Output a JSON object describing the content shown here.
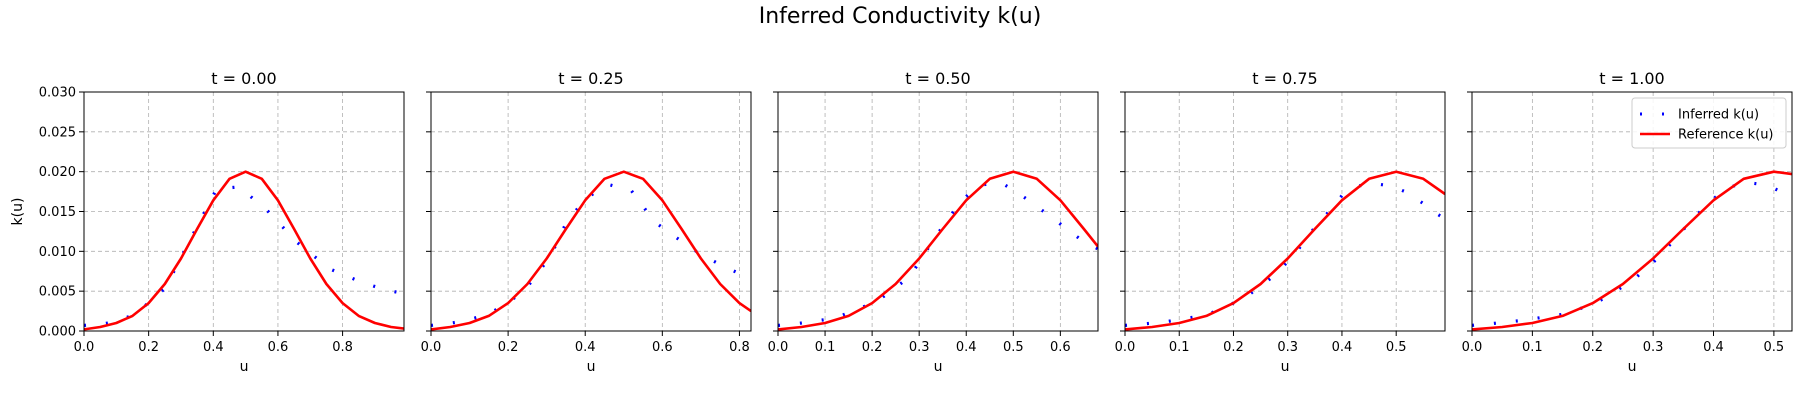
{
  "title": "Inferred Conductivity k(u)",
  "colors": {
    "inferred": "#0000ff",
    "reference": "#ff0000",
    "grid": "#b0b0b0"
  },
  "chart_data": [
    {
      "type": "line",
      "title": "t = 0.00",
      "xlabel": "u",
      "ylabel": "k(u)",
      "xlim": [
        0.0,
        0.99
      ],
      "ylim": [
        0.0,
        0.03
      ],
      "xticks": [
        "0.0",
        "0.2",
        "0.4",
        "0.6",
        "0.8"
      ],
      "yticks": [
        "0.000",
        "0.005",
        "0.010",
        "0.015",
        "0.020",
        "0.025",
        "0.030"
      ],
      "grid": true,
      "series": [
        {
          "name": "Inferred k(u)",
          "style": "dotted",
          "x": [
            0.0,
            0.03,
            0.06,
            0.09,
            0.12,
            0.15,
            0.18,
            0.21,
            0.25,
            0.41,
            0.48,
            0.57,
            0.66,
            0.76,
            0.86,
            0.93,
            0.99
          ],
          "y": [
            0.0007,
            0.0008,
            0.0009,
            0.0011,
            0.0015,
            0.002,
            0.0028,
            0.004,
            0.0053,
            0.0178,
            0.0181,
            0.015,
            0.0111,
            0.0078,
            0.0061,
            0.0052,
            0.0047
          ]
        },
        {
          "name": "Reference k(u)",
          "style": "solid",
          "x": [
            0.0,
            0.05,
            0.1,
            0.15,
            0.2,
            0.25,
            0.3,
            0.35,
            0.4,
            0.45,
            0.5,
            0.55,
            0.6,
            0.65,
            0.7,
            0.75,
            0.8,
            0.85,
            0.9,
            0.95,
            0.99
          ],
          "y": [
            0.0002,
            0.0005,
            0.001,
            0.0019,
            0.0035,
            0.0059,
            0.0091,
            0.0128,
            0.0164,
            0.0191,
            0.02,
            0.0191,
            0.0164,
            0.0128,
            0.0091,
            0.0059,
            0.0035,
            0.0019,
            0.001,
            0.0005,
            0.0003
          ]
        }
      ]
    },
    {
      "type": "line",
      "title": "t = 0.25",
      "xlabel": "u",
      "ylabel": "",
      "xlim": [
        0.0,
        0.83
      ],
      "ylim": [
        0.0,
        0.03
      ],
      "xticks": [
        "0.0",
        "0.2",
        "0.4",
        "0.6",
        "0.8"
      ],
      "yticks": [],
      "grid": true,
      "series": [
        {
          "name": "Inferred k(u)",
          "style": "dotted",
          "x": [
            0.0,
            0.04,
            0.08,
            0.15,
            0.24,
            0.31,
            0.35,
            0.4,
            0.46,
            0.52,
            0.58,
            0.64,
            0.7,
            0.76,
            0.8,
            0.83
          ],
          "y": [
            0.0007,
            0.0009,
            0.0012,
            0.0021,
            0.0049,
            0.0094,
            0.0135,
            0.0166,
            0.0184,
            0.0176,
            0.0137,
            0.0116,
            0.0096,
            0.0081,
            0.0072,
            0.0067
          ]
        },
        {
          "name": "Reference k(u)",
          "style": "solid",
          "x": [
            0.0,
            0.05,
            0.1,
            0.15,
            0.2,
            0.25,
            0.3,
            0.35,
            0.4,
            0.45,
            0.5,
            0.55,
            0.6,
            0.65,
            0.7,
            0.75,
            0.8,
            0.83
          ],
          "y": [
            0.0002,
            0.0005,
            0.001,
            0.0019,
            0.0035,
            0.0059,
            0.0091,
            0.0128,
            0.0164,
            0.0191,
            0.02,
            0.0191,
            0.0164,
            0.0128,
            0.0091,
            0.0059,
            0.0035,
            0.0025
          ]
        }
      ]
    },
    {
      "type": "line",
      "title": "t = 0.50",
      "xlabel": "u",
      "ylabel": "",
      "xlim": [
        0.0,
        0.68
      ],
      "ylim": [
        0.0,
        0.03
      ],
      "xticks": [
        "0.0",
        "0.1",
        "0.2",
        "0.3",
        "0.4",
        "0.5",
        "0.6"
      ],
      "yticks": [],
      "grid": true,
      "series": [
        {
          "name": "Inferred k(u)",
          "style": "dotted",
          "x": [
            0.0,
            0.02,
            0.05,
            0.12,
            0.21,
            0.28,
            0.32,
            0.36,
            0.39,
            0.42,
            0.45,
            0.48,
            0.5,
            0.53,
            0.56,
            0.59,
            0.62,
            0.65,
            0.68
          ],
          "y": [
            0.0007,
            0.0008,
            0.001,
            0.0016,
            0.0037,
            0.0068,
            0.0105,
            0.014,
            0.0163,
            0.018,
            0.0186,
            0.0184,
            0.0177,
            0.0165,
            0.0152,
            0.0139,
            0.0125,
            0.0112,
            0.0103
          ]
        },
        {
          "name": "Reference k(u)",
          "style": "solid",
          "x": [
            0.0,
            0.05,
            0.1,
            0.15,
            0.2,
            0.25,
            0.3,
            0.35,
            0.4,
            0.45,
            0.5,
            0.55,
            0.6,
            0.65,
            0.68
          ],
          "y": [
            0.0002,
            0.0005,
            0.001,
            0.0019,
            0.0035,
            0.0059,
            0.0091,
            0.0128,
            0.0164,
            0.0191,
            0.02,
            0.0191,
            0.0164,
            0.0128,
            0.0106
          ]
        }
      ]
    },
    {
      "type": "line",
      "title": "t = 0.75",
      "xlabel": "u",
      "ylabel": "",
      "xlim": [
        0.0,
        0.59
      ],
      "ylim": [
        0.0,
        0.03
      ],
      "xticks": [
        "0.0",
        "0.1",
        "0.2",
        "0.3",
        "0.4",
        "0.5"
      ],
      "yticks": [],
      "grid": true,
      "series": [
        {
          "name": "Inferred k(u)",
          "style": "dotted",
          "x": [
            0.0,
            0.02,
            0.07,
            0.15,
            0.22,
            0.28,
            0.32,
            0.35,
            0.38,
            0.4,
            0.43,
            0.46,
            0.49,
            0.52,
            0.55,
            0.57,
            0.59
          ],
          "y": [
            0.0007,
            0.0008,
            0.0011,
            0.002,
            0.0041,
            0.0072,
            0.0103,
            0.013,
            0.0153,
            0.017,
            0.0182,
            0.0185,
            0.0182,
            0.0174,
            0.016,
            0.0149,
            0.0141
          ]
        },
        {
          "name": "Reference k(u)",
          "style": "solid",
          "x": [
            0.0,
            0.05,
            0.1,
            0.15,
            0.2,
            0.25,
            0.3,
            0.35,
            0.4,
            0.45,
            0.5,
            0.55,
            0.59
          ],
          "y": [
            0.0002,
            0.0005,
            0.001,
            0.0019,
            0.0035,
            0.0059,
            0.0091,
            0.0128,
            0.0164,
            0.0191,
            0.02,
            0.0191,
            0.0172
          ]
        }
      ]
    },
    {
      "type": "line",
      "title": "t = 1.00",
      "xlabel": "u",
      "ylabel": "",
      "xlim": [
        0.0,
        0.53
      ],
      "ylim": [
        0.0,
        0.03
      ],
      "xticks": [
        "0.0",
        "0.1",
        "0.2",
        "0.3",
        "0.4",
        "0.5"
      ],
      "yticks": [],
      "grid": true,
      "legend": "top-right",
      "series": [
        {
          "name": "Inferred k(u)",
          "style": "dotted",
          "x": [
            0.0,
            0.01,
            0.03,
            0.08,
            0.16,
            0.22,
            0.27,
            0.31,
            0.34,
            0.37,
            0.4,
            0.42,
            0.44,
            0.46,
            0.48,
            0.5,
            0.52,
            0.53
          ],
          "y": [
            0.0007,
            0.0008,
            0.0009,
            0.0013,
            0.0022,
            0.0041,
            0.0066,
            0.0093,
            0.0119,
            0.0144,
            0.0166,
            0.0178,
            0.0184,
            0.0186,
            0.0184,
            0.0179,
            0.0172,
            0.0167
          ]
        },
        {
          "name": "Reference k(u)",
          "style": "solid",
          "x": [
            0.0,
            0.05,
            0.1,
            0.15,
            0.2,
            0.25,
            0.3,
            0.35,
            0.4,
            0.45,
            0.5,
            0.53
          ],
          "y": [
            0.0002,
            0.0005,
            0.001,
            0.0019,
            0.0035,
            0.0059,
            0.0091,
            0.0128,
            0.0164,
            0.0191,
            0.02,
            0.0197
          ]
        }
      ]
    }
  ]
}
